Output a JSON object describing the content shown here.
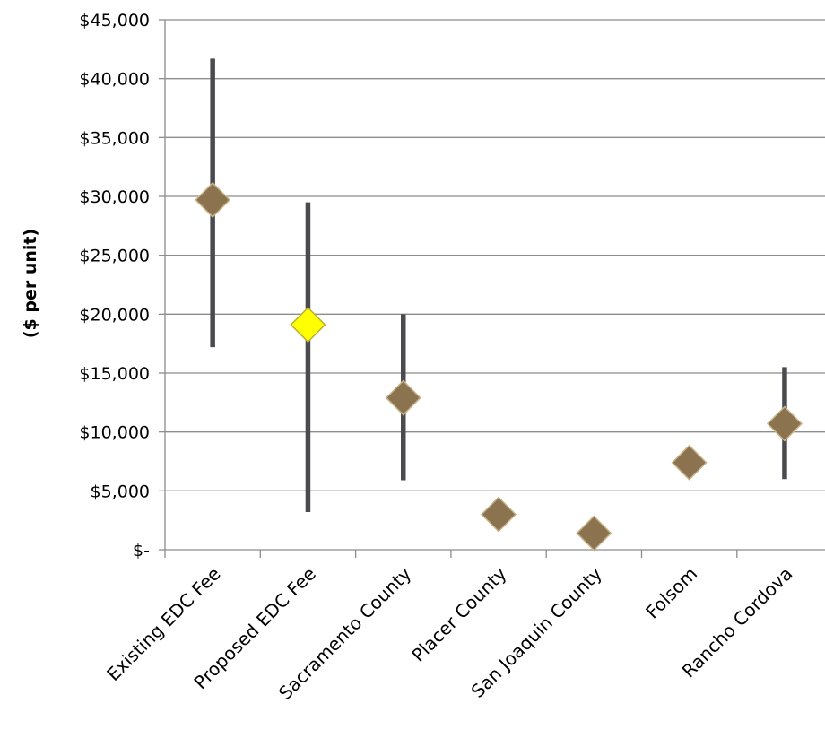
{
  "chart_data": {
    "type": "scatter",
    "ylabel": "($ per unit)",
    "ylim": [
      0,
      45000
    ],
    "ytick_values": [
      0,
      5000,
      10000,
      15000,
      20000,
      25000,
      30000,
      35000,
      40000,
      45000
    ],
    "ytick_labels": [
      "$-",
      "$5,000",
      "$10,000",
      "$15,000",
      "$20,000",
      "$25,000",
      "$30,000",
      "$35,000",
      "$40,000",
      "$45,000"
    ],
    "categories": [
      "Existing EDC Fee",
      "Proposed EDC Fee",
      "Sacramento County",
      "Placer County",
      "San Joaquin County",
      "Folsom",
      "Rancho Cordova"
    ],
    "values": [
      29700,
      19100,
      12900,
      3000,
      1400,
      7400,
      10700
    ],
    "range_low": [
      17200,
      3200,
      5900,
      null,
      null,
      null,
      6000
    ],
    "range_high": [
      41700,
      29500,
      20000,
      null,
      null,
      null,
      15500
    ],
    "grid": true,
    "legend": "none",
    "colors": {
      "marker": "#8b7350",
      "marker_edge": "#c8b48a",
      "highlight_marker": "#ffff00",
      "highlight_edge": "#b8b030",
      "range_line": "#4a4a4f",
      "grid": "#8c8c8c",
      "axis": "#8c8c8c"
    },
    "highlight_index": 1
  }
}
